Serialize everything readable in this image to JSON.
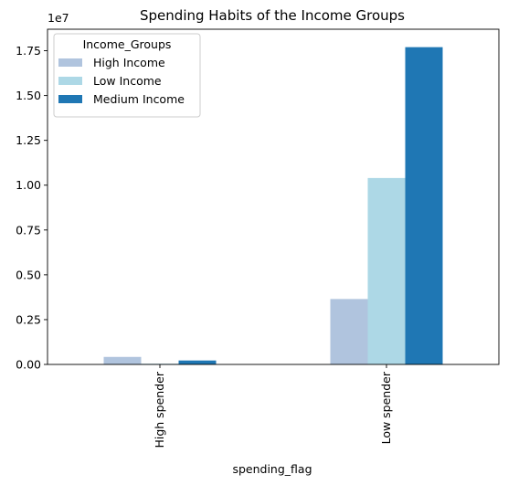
{
  "chart_data": {
    "type": "bar",
    "title": "Spending Habits of the Income Groups",
    "xlabel": "spending_flag",
    "ylabel": "",
    "y_offset_label": "1e7",
    "categories": [
      "High spender",
      "Low spender"
    ],
    "series": [
      {
        "name": "High Income",
        "color": "#b0c4de",
        "values": [
          420000,
          3650000
        ]
      },
      {
        "name": "Low Income",
        "color": "#add8e6",
        "values": [
          40000,
          10400000
        ]
      },
      {
        "name": "Medium Income",
        "color": "#1f77b4",
        "values": [
          220000,
          17700000
        ]
      }
    ],
    "ylim": [
      0,
      18700000
    ],
    "yticks": [
      0,
      2500000,
      5000000,
      7500000,
      10000000,
      12500000,
      15000000,
      17500000
    ],
    "ytick_labels": [
      "0.00",
      "0.25",
      "0.50",
      "0.75",
      "1.00",
      "1.25",
      "1.50",
      "1.75"
    ],
    "legend_title": "Income_Groups",
    "legend_position": "top-left",
    "grid": false
  }
}
